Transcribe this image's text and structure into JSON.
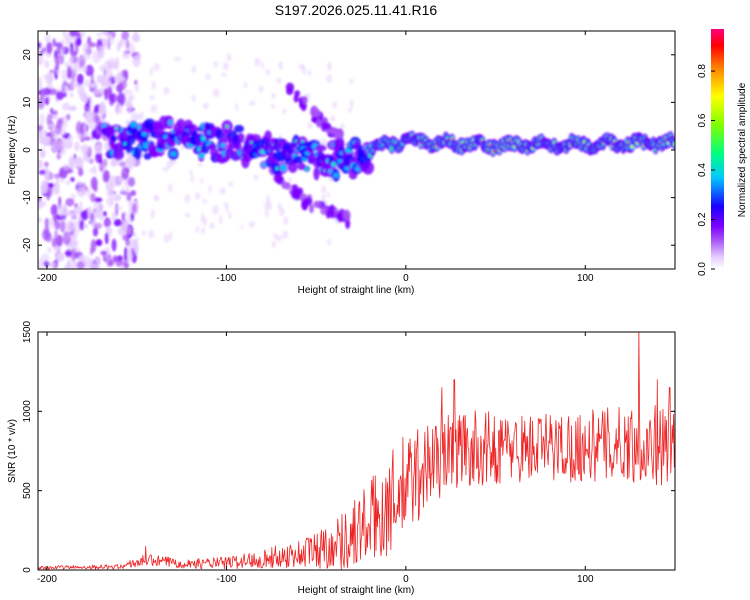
{
  "title": "S197.2026.025.11.41.R16",
  "chart_data": [
    {
      "type": "heatmap",
      "name": "spectrogram",
      "xlabel": "Height of straight line (km)",
      "ylabel": "Frequency (Hz)",
      "xlim": [
        -205,
        150
      ],
      "ylim": [
        -25,
        25
      ],
      "xticks": [
        "-200",
        "-100",
        "0",
        "100"
      ],
      "xtick_values": [
        -200,
        -100,
        0,
        100
      ],
      "yticks": [
        "20",
        "10",
        "0",
        "-10",
        "-20"
      ],
      "ytick_values": [
        20,
        10,
        0,
        -10,
        -20
      ],
      "colorbar": {
        "label": "Normalized spectral amplitude",
        "range": [
          0,
          0.97
        ],
        "ticks": [
          "0.0",
          "0.2",
          "0.4",
          "0.6",
          "0.8"
        ],
        "tick_values": [
          0.0,
          0.2,
          0.4,
          0.6,
          0.8
        ],
        "colors": [
          "#ffffff",
          "#e6ccff",
          "#a855f7",
          "#7c00ff",
          "#1a00ff",
          "#00c8ff",
          "#00ff80",
          "#80ff00",
          "#ffff00",
          "#ff8000",
          "#ff0000",
          "#ff0080"
        ]
      },
      "features": {
        "main_carrier": [
          [
            -165,
            1.5
          ],
          [
            -130,
            2.5
          ],
          [
            -100,
            1.5
          ],
          [
            -60,
            -1.5
          ],
          [
            -28,
            -2.0
          ],
          [
            -18,
            0.5
          ],
          [
            0,
            2.0
          ],
          [
            20,
            1.5
          ],
          [
            50,
            1.0
          ],
          [
            100,
            1.2
          ],
          [
            150,
            1.5
          ]
        ],
        "upper_branch": [
          [
            -65,
            13
          ],
          [
            -50,
            7
          ],
          [
            -35,
            2
          ]
        ],
        "lower_branch": [
          [
            -75,
            -4
          ],
          [
            -55,
            -11
          ],
          [
            -30,
            -15
          ]
        ],
        "noise_region": [
          -205,
          -160
        ]
      }
    },
    {
      "type": "line",
      "name": "snr",
      "xlabel": "Height of straight line (km)",
      "ylabel": "SNR (10 * v/v)",
      "xlim": [
        -205,
        150
      ],
      "ylim": [
        0,
        1500
      ],
      "xticks": [
        "-200",
        "-100",
        "0",
        "100"
      ],
      "xtick_values": [
        -200,
        -100,
        0,
        100
      ],
      "yticks": [
        "0",
        "500",
        "1000",
        "1500"
      ],
      "ytick_values": [
        0,
        500,
        1000,
        1500
      ],
      "color": "#ee2222",
      "envelope_x": [
        -205,
        -160,
        -145,
        -120,
        -100,
        -80,
        -60,
        -40,
        -30,
        -20,
        -10,
        0,
        10,
        20,
        30,
        60,
        100,
        130,
        150
      ],
      "envelope_mean": [
        15,
        20,
        60,
        40,
        45,
        70,
        100,
        160,
        220,
        300,
        400,
        520,
        650,
        720,
        760,
        770,
        780,
        800,
        780
      ],
      "envelope_amp": [
        10,
        15,
        40,
        30,
        40,
        60,
        90,
        160,
        220,
        280,
        320,
        350,
        300,
        260,
        250,
        220,
        230,
        250,
        260
      ],
      "peaks": [
        [
          -145,
          150
        ],
        [
          20,
          1150
        ],
        [
          27,
          1200
        ],
        [
          130,
          1520
        ],
        [
          140,
          1200
        ],
        [
          147,
          1150
        ]
      ],
      "sample_count": 900
    }
  ]
}
